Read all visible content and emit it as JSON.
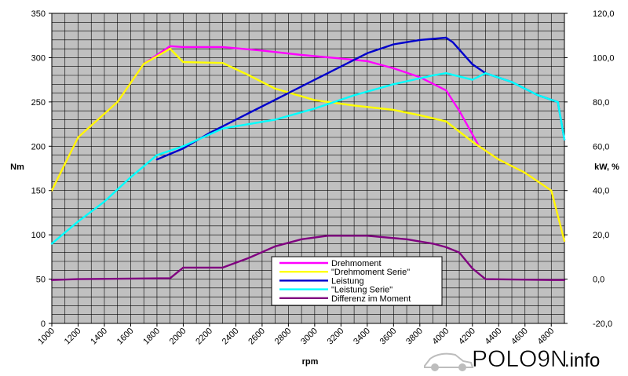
{
  "chart_data": {
    "type": "line",
    "xlabel": "rpm",
    "ylabel_left": "Nm",
    "ylabel_right": "kW, %",
    "xlim": [
      1000,
      4900
    ],
    "ylim_left": [
      0,
      350
    ],
    "ylim_right": [
      -20,
      120
    ],
    "x_ticks": [
      1000,
      1200,
      1400,
      1600,
      1800,
      2000,
      2200,
      2400,
      2600,
      2800,
      3000,
      3200,
      3400,
      3600,
      3800,
      4000,
      4200,
      4400,
      4600,
      4800
    ],
    "x_tick_labels": [
      "1000",
      "1200",
      "1400",
      "1600",
      "1800",
      "2000",
      "2200",
      "2400",
      "2600",
      "2800",
      "3000",
      "3200",
      "3400",
      "3600",
      "3800",
      "4000",
      "4200",
      "4400",
      "4600",
      "4800"
    ],
    "y_left_ticks": [
      0,
      50,
      100,
      150,
      200,
      250,
      300,
      350
    ],
    "y_left_tick_labels": [
      "0",
      "50",
      "100",
      "150",
      "200",
      "250",
      "300",
      "350"
    ],
    "y_right_ticks": [
      -20,
      0,
      20,
      40,
      60,
      80,
      100,
      120
    ],
    "y_right_tick_labels": [
      "-20,0",
      "0,0",
      "20,0",
      "40,0",
      "60,0",
      "80,0",
      "100,0",
      "120,0"
    ],
    "grid": true,
    "legend_position": "bottom-center",
    "series": [
      {
        "name": "Drehmoment",
        "axis": "left",
        "color": "#ff00ff",
        "points": [
          [
            1000,
            150
          ],
          [
            1200,
            210
          ],
          [
            1500,
            250
          ],
          [
            1700,
            293
          ],
          [
            1900,
            313
          ],
          [
            2000,
            312
          ],
          [
            2300,
            312
          ],
          [
            2600,
            308
          ],
          [
            2900,
            303
          ],
          [
            3200,
            299
          ],
          [
            3400,
            296
          ],
          [
            3600,
            288
          ],
          [
            3800,
            278
          ],
          [
            4000,
            263
          ],
          [
            4100,
            240
          ],
          [
            4250,
            200
          ],
          [
            4400,
            185
          ],
          [
            4600,
            170
          ],
          [
            4800,
            150
          ],
          [
            4900,
            93
          ]
        ]
      },
      {
        "name": "\"Drehmoment Serie\"",
        "axis": "left",
        "color": "#ffff00",
        "points": [
          [
            1000,
            150
          ],
          [
            1200,
            210
          ],
          [
            1500,
            250
          ],
          [
            1700,
            293
          ],
          [
            1900,
            310
          ],
          [
            2000,
            295
          ],
          [
            2300,
            294
          ],
          [
            2500,
            280
          ],
          [
            2700,
            265
          ],
          [
            3000,
            252
          ],
          [
            3300,
            246
          ],
          [
            3600,
            241
          ],
          [
            3800,
            235
          ],
          [
            4000,
            228
          ],
          [
            4200,
            205
          ],
          [
            4400,
            185
          ],
          [
            4600,
            170
          ],
          [
            4800,
            150
          ],
          [
            4900,
            93
          ]
        ]
      },
      {
        "name": "Leistung",
        "axis": "right",
        "color": "#0000cc",
        "points": [
          [
            1800,
            54
          ],
          [
            2000,
            59
          ],
          [
            2200,
            66
          ],
          [
            2400,
            72
          ],
          [
            2600,
            78
          ],
          [
            2800,
            84
          ],
          [
            3000,
            90
          ],
          [
            3200,
            96
          ],
          [
            3400,
            102
          ],
          [
            3600,
            106
          ],
          [
            3800,
            108
          ],
          [
            4000,
            109
          ],
          [
            4050,
            107
          ],
          [
            4200,
            97
          ],
          [
            4300,
            93
          ],
          [
            4500,
            89
          ],
          [
            4700,
            83
          ],
          [
            4850,
            80
          ],
          [
            4900,
            63
          ]
        ]
      },
      {
        "name": "\"Leistung Serie\"",
        "axis": "right",
        "color": "#00ffff",
        "points": [
          [
            1000,
            16
          ],
          [
            1200,
            26
          ],
          [
            1400,
            35
          ],
          [
            1600,
            46
          ],
          [
            1800,
            56
          ],
          [
            2000,
            60
          ],
          [
            2300,
            68
          ],
          [
            2700,
            72
          ],
          [
            3000,
            77
          ],
          [
            3300,
            83
          ],
          [
            3600,
            88
          ],
          [
            3900,
            92
          ],
          [
            4000,
            93
          ],
          [
            4200,
            90
          ],
          [
            4300,
            93
          ],
          [
            4500,
            89
          ],
          [
            4700,
            83
          ],
          [
            4850,
            80
          ],
          [
            4900,
            63
          ]
        ]
      },
      {
        "name": "Differenz im Moment",
        "axis": "left",
        "color": "#800080",
        "points": [
          [
            1000,
            49
          ],
          [
            1200,
            50
          ],
          [
            1900,
            51
          ],
          [
            2000,
            63
          ],
          [
            2300,
            63
          ],
          [
            2500,
            74
          ],
          [
            2700,
            87
          ],
          [
            2900,
            95
          ],
          [
            3100,
            99
          ],
          [
            3400,
            99
          ],
          [
            3700,
            95
          ],
          [
            3900,
            90
          ],
          [
            4000,
            86
          ],
          [
            4100,
            80
          ],
          [
            4200,
            62
          ],
          [
            4300,
            50
          ],
          [
            4800,
            49
          ],
          [
            4900,
            49
          ]
        ]
      }
    ]
  },
  "watermark": {
    "main": "POLO9N",
    "suffix": ".info"
  }
}
